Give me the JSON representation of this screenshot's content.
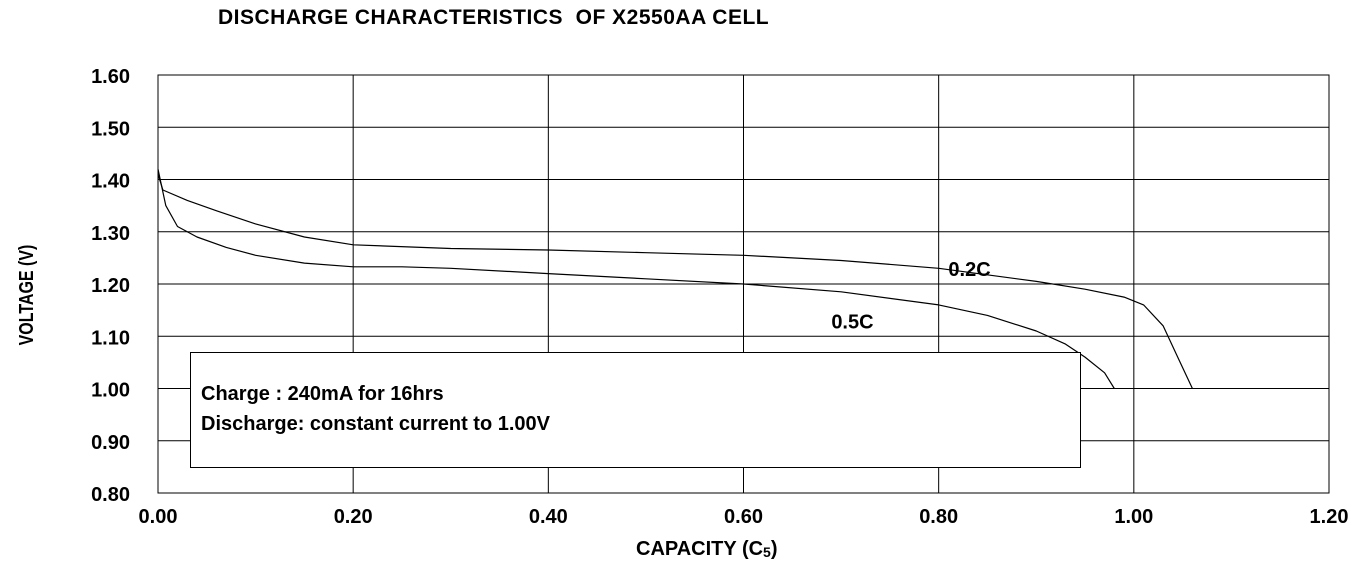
{
  "chart_data": {
    "type": "line",
    "title": "DISCHARGE CHARACTERISTICS  OF X2550AA CELL",
    "xlabel": "CAPACITY (C",
    "xlabel_sub": "5",
    "xlabel_end": ")",
    "ylabel": "VOLTAGE (V)",
    "xlim": [
      0,
      1.2
    ],
    "ylim": [
      0.8,
      1.6
    ],
    "xticks": [
      "0.00",
      "0.20",
      "0.40",
      "0.60",
      "0.80",
      "1.00",
      "1.20"
    ],
    "yticks": [
      "0.80",
      "0.90",
      "1.00",
      "1.10",
      "1.20",
      "1.30",
      "1.40",
      "1.50",
      "1.60"
    ],
    "grid": true,
    "series": [
      {
        "name": "0.2C",
        "x": [
          0.0,
          0.005,
          0.03,
          0.06,
          0.1,
          0.15,
          0.2,
          0.3,
          0.4,
          0.5,
          0.6,
          0.7,
          0.8,
          0.9,
          0.95,
          0.99,
          1.01,
          1.03,
          1.045,
          1.06
        ],
        "y": [
          1.41,
          1.38,
          1.36,
          1.34,
          1.315,
          1.29,
          1.275,
          1.268,
          1.265,
          1.26,
          1.255,
          1.245,
          1.23,
          1.205,
          1.19,
          1.175,
          1.16,
          1.12,
          1.06,
          1.0
        ]
      },
      {
        "name": "0.5C",
        "x": [
          0.0,
          0.008,
          0.02,
          0.04,
          0.07,
          0.1,
          0.15,
          0.2,
          0.25,
          0.3,
          0.4,
          0.5,
          0.6,
          0.7,
          0.8,
          0.85,
          0.9,
          0.93,
          0.95,
          0.97,
          0.98
        ],
        "y": [
          1.42,
          1.35,
          1.31,
          1.29,
          1.27,
          1.255,
          1.24,
          1.233,
          1.233,
          1.23,
          1.22,
          1.21,
          1.2,
          1.185,
          1.16,
          1.14,
          1.11,
          1.085,
          1.06,
          1.03,
          1.0
        ]
      }
    ],
    "annotations": [
      {
        "text": "0.2C",
        "x": 0.81,
        "y": 1.215
      },
      {
        "text": "0.5C",
        "x": 0.69,
        "y": 1.115
      }
    ],
    "note": {
      "line1": "Charge : 240mA for 16hrs",
      "line2": "Discharge: constant current to 1.00V"
    }
  }
}
